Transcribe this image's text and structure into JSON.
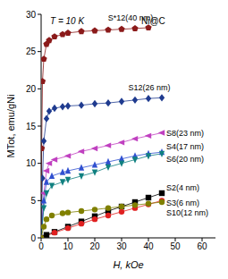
{
  "chart_data": {
    "type": "line",
    "x_label": "H, kOe",
    "y_label": "MTot, emu/gNi",
    "annotations": [
      "T = 10 K",
      "Ni@C"
    ],
    "xlim": [
      0,
      65
    ],
    "xticks": [
      0,
      10,
      20,
      30,
      40,
      50,
      60
    ],
    "ylim": [
      0,
      30
    ],
    "yticks": [
      0,
      5,
      10,
      15,
      20,
      25,
      30
    ],
    "grid": false,
    "series": [
      {
        "name": "S*12(40 nm)",
        "color": "#8b1a1a",
        "marker": "pentagon",
        "x": [
          0,
          0.2,
          0.5,
          1,
          2,
          3,
          5,
          8,
          10,
          15,
          20,
          25,
          30,
          35,
          40
        ],
        "values": [
          0,
          12,
          21,
          24,
          26,
          26.5,
          27,
          27.3,
          27.5,
          27.7,
          27.8,
          27.9,
          28,
          28.1,
          28.2
        ]
      },
      {
        "name": "S12(26 nm)",
        "color": "#1f3b8f",
        "marker": "diamond",
        "x": [
          0,
          0.5,
          1,
          2,
          3,
          5,
          8,
          10,
          15,
          20,
          25,
          30,
          35,
          40,
          45
        ],
        "values": [
          0,
          8,
          13,
          16,
          17,
          17.4,
          17.6,
          17.7,
          17.8,
          18,
          18.1,
          18.3,
          18.5,
          18.7,
          18.8
        ]
      },
      {
        "name": "S8(23 nm)",
        "color": "#c040c0",
        "marker": "triangle-left",
        "x": [
          0,
          1,
          2,
          3,
          5,
          10,
          15,
          20,
          25,
          30,
          35,
          40,
          45
        ],
        "values": [
          0,
          6,
          9,
          10,
          10.5,
          11,
          11.6,
          12,
          12.4,
          12.8,
          13.3,
          13.7,
          14.1
        ]
      },
      {
        "name": "S4(17 nm)",
        "color": "#3050d0",
        "marker": "triangle-up",
        "x": [
          0,
          1,
          2,
          4,
          8,
          10,
          15,
          20,
          25,
          30,
          35,
          40,
          45
        ],
        "values": [
          0,
          5,
          7.5,
          8.3,
          8.8,
          9,
          9.4,
          9.8,
          10.2,
          10.6,
          11,
          11.3,
          11.5
        ]
      },
      {
        "name": "S6(20 nm)",
        "color": "#108080",
        "marker": "triangle-down",
        "x": [
          0,
          1,
          2,
          4,
          8,
          10,
          15,
          20,
          25,
          30,
          35,
          40,
          45
        ],
        "values": [
          0,
          4,
          6,
          7,
          7.5,
          7.8,
          8.3,
          8.8,
          9.5,
          10,
          10.5,
          11,
          11.3
        ]
      },
      {
        "name": "S2(4 nm)",
        "color": "#000000",
        "marker": "square",
        "x": [
          0,
          2,
          5,
          10,
          15,
          20,
          25,
          30,
          35,
          40,
          45
        ],
        "values": [
          0,
          0.4,
          0.8,
          1.5,
          2.2,
          2.9,
          3.6,
          4.2,
          4.8,
          5.4,
          6
        ]
      },
      {
        "name": "S3(6 nm)",
        "color": "#e02020",
        "marker": "circle",
        "x": [
          0,
          5,
          10,
          15,
          20,
          25,
          30,
          35,
          40,
          45
        ],
        "values": [
          0,
          0.7,
          1.3,
          1.9,
          2.5,
          3,
          3.5,
          4,
          4.5,
          5
        ]
      },
      {
        "name": "S10(12 nm)",
        "color": "#808000",
        "marker": "circle",
        "x": [
          0,
          1,
          2,
          4,
          8,
          10,
          15,
          20,
          25,
          30,
          35,
          40,
          45
        ],
        "values": [
          0,
          1.5,
          2.5,
          3,
          3.3,
          3.4,
          3.6,
          3.8,
          4,
          4.2,
          4.4,
          4.6,
          4.8
        ]
      }
    ]
  }
}
